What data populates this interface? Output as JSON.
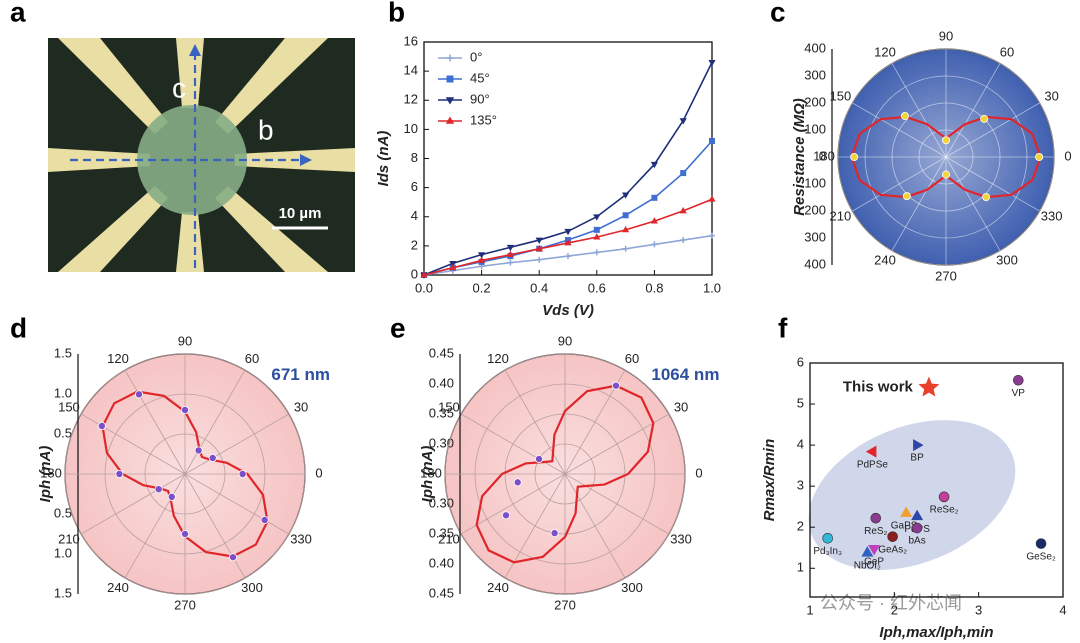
{
  "image_panel": {
    "panel_label": "a",
    "labels": [
      "c",
      "b"
    ],
    "scale_bar": "10 µm"
  },
  "chart_data": [
    {
      "type": "line",
      "panel_label": "b",
      "xlabel": "Vds (V)",
      "ylabel": "Ids (nA)",
      "x": [
        0,
        0.1,
        0.2,
        0.3,
        0.4,
        0.5,
        0.6,
        0.7,
        0.8,
        0.9,
        1.0
      ],
      "xlim": [
        0,
        1
      ],
      "xticks": [
        {
          "value": 0,
          "label": "0.0"
        },
        0.2,
        0.4,
        0.6,
        0.8,
        {
          "value": 1,
          "label": "1.0"
        }
      ],
      "ylim": [
        0,
        16
      ],
      "yticks": [
        0,
        2,
        4,
        6,
        8,
        10,
        12,
        14,
        16
      ],
      "legend": "upper left",
      "series": [
        {
          "name": "0°",
          "color": "#8fa6d6",
          "marker": "plus",
          "values": [
            0,
            0.3,
            0.6,
            0.85,
            1.05,
            1.3,
            1.55,
            1.8,
            2.1,
            2.4,
            2.7
          ]
        },
        {
          "name": "45°",
          "color": "#3f6fd0",
          "marker": "square",
          "values": [
            0,
            0.5,
            0.9,
            1.3,
            1.8,
            2.4,
            3.1,
            4.1,
            5.3,
            7.0,
            9.2
          ]
        },
        {
          "name": "90°",
          "color": "#1f2f7a",
          "marker": "triangle-down",
          "values": [
            0,
            0.8,
            1.4,
            1.9,
            2.4,
            3.0,
            4.0,
            5.5,
            7.6,
            10.6,
            14.6
          ]
        },
        {
          "name": "135°",
          "color": "#e0262b",
          "marker": "triangle-up",
          "values": [
            0,
            0.5,
            1.0,
            1.4,
            1.8,
            2.2,
            2.6,
            3.1,
            3.7,
            4.4,
            5.2
          ]
        }
      ]
    },
    {
      "type": "polar",
      "panel_label": "c",
      "ylabel": "Resistance (MΩ)",
      "background": "#4060b0",
      "rlim": [
        0,
        400
      ],
      "rticks": [
        0,
        100,
        200,
        300,
        400
      ],
      "angle_ticks": [
        0,
        30,
        60,
        90,
        120,
        150,
        180,
        210,
        240,
        270,
        300,
        330
      ],
      "series": [
        {
          "style": "line",
          "color": "#e0262b",
          "angles": [
            0,
            15,
            30,
            45,
            60,
            75,
            90,
            105,
            120,
            135,
            150,
            165,
            180,
            195,
            210,
            225,
            240,
            255,
            270,
            285,
            300,
            315,
            330,
            345
          ],
          "values": [
            350,
            331,
            280,
            210,
            140,
            89,
            70,
            89,
            140,
            210,
            280,
            331,
            350,
            331,
            280,
            210,
            140,
            89,
            70,
            89,
            140,
            210,
            280,
            331
          ]
        },
        {
          "style": "points",
          "color": "#f2d43a",
          "angles": [
            0,
            45,
            90,
            135,
            180,
            225,
            270,
            315
          ],
          "values": [
            345,
            200,
            62,
            215,
            340,
            205,
            65,
            210
          ]
        }
      ]
    },
    {
      "type": "polar",
      "panel_label": "d",
      "ylabel": "Iph (nA)",
      "background": "#f6c4c4",
      "annotation": "671 nm",
      "rlim": [
        0,
        1.5
      ],
      "rticks": [
        0.5,
        {
          "value": 1,
          "label": "1.0"
        },
        1.5
      ],
      "angle_ticks": [
        0,
        30,
        60,
        90,
        120,
        150,
        180,
        210,
        240,
        270,
        300,
        330
      ],
      "series": [
        {
          "style": "line",
          "color": "#e0262b",
          "angles": [
            0,
            15,
            30,
            45,
            60,
            75,
            90,
            105,
            120,
            135,
            150,
            165,
            180,
            195,
            210,
            225,
            240,
            255,
            270,
            285,
            300,
            315,
            330,
            345
          ],
          "values": [
            0.78,
            0.54,
            0.36,
            0.3,
            0.36,
            0.54,
            0.78,
            1.01,
            1.19,
            1.25,
            1.19,
            1.01,
            0.78,
            0.54,
            0.36,
            0.3,
            0.36,
            0.54,
            0.78,
            1.01,
            1.19,
            1.25,
            1.19,
            1.01
          ]
        },
        {
          "style": "points",
          "color": "#7a4fc9",
          "angles": [
            0,
            30,
            60,
            90,
            120,
            150,
            180,
            210,
            240,
            270,
            300,
            330
          ],
          "values": [
            0.72,
            0.4,
            0.34,
            0.8,
            1.15,
            1.2,
            0.82,
            0.38,
            0.33,
            0.75,
            1.2,
            1.15
          ]
        }
      ]
    },
    {
      "type": "polar",
      "panel_label": "e",
      "ylabel": "Iph (nA)",
      "background": "#f6c4c4",
      "annotation": "1064 nm",
      "rlim": [
        0.25,
        0.45
      ],
      "rticks": [
        {
          "value": 0.3,
          "label": "0.30"
        },
        0.35,
        {
          "value": 0.4,
          "label": "0.40"
        },
        0.45
      ],
      "angle_ticks": [
        0,
        30,
        60,
        90,
        120,
        150,
        180,
        210,
        240,
        270,
        300,
        330
      ],
      "series": [
        {
          "style": "line",
          "color": "#e0262b",
          "angles": [
            0,
            15,
            30,
            45,
            60,
            75,
            90,
            105,
            120,
            135,
            150,
            165,
            180,
            195,
            210,
            225,
            240,
            255,
            270,
            285,
            300,
            315,
            330,
            345
          ],
          "values": [
            0.355,
            0.393,
            0.42,
            0.43,
            0.42,
            0.393,
            0.355,
            0.318,
            0.29,
            0.28,
            0.29,
            0.318,
            0.355,
            0.393,
            0.42,
            0.43,
            0.42,
            0.393,
            0.355,
            0.318,
            0.29,
            0.28,
            0.29,
            0.318
          ]
        },
        {
          "style": "points",
          "color": "#7a4fc9",
          "angles": [
            60,
            150,
            190,
            215,
            260
          ],
          "values": [
            0.42,
            0.3,
            0.33,
            0.37,
            0.35
          ]
        }
      ]
    },
    {
      "type": "scatter",
      "panel_label": "f",
      "xlabel": "Iph,max/Iph,min",
      "ylabel": "Rmax/Rmin",
      "xlim": [
        1,
        4
      ],
      "xticks": [
        1,
        2,
        3,
        4
      ],
      "ylim": [
        0.3,
        6
      ],
      "yticks": [
        1,
        2,
        3,
        4,
        5,
        6
      ],
      "labels": [
        "This work",
        "VP",
        "PdPSe",
        "BP",
        "GaPS₄",
        "ReSe₂",
        "ReS₂",
        "PdPS",
        "bAs",
        "GeAs₂",
        "GeP",
        "Pd₃In₃",
        "NbOI₂",
        "GeSe₂"
      ],
      "x": [
        2.41,
        3.47,
        1.74,
        2.27,
        2.14,
        2.59,
        1.78,
        2.27,
        2.27,
        1.98,
        1.76,
        1.21,
        1.68,
        3.74
      ],
      "values": [
        5.4,
        5.58,
        3.84,
        4.0,
        2.35,
        2.74,
        2.22,
        2.27,
        1.98,
        1.77,
        1.47,
        1.73,
        1.38,
        1.6
      ],
      "colors": [
        "#e8402a",
        "#8a3a8f",
        "#e0262b",
        "#2d46a8",
        "#f0a030",
        "#c0409a",
        "#8a3a8f",
        "#2d46a8",
        "#8a3a8f",
        "#8a1f1f",
        "#c040c0",
        "#30b8d8",
        "#3060c0",
        "#1a2a6a"
      ],
      "markers": [
        "star",
        "circle",
        "triangle-left",
        "triangle-right",
        "triangle-up",
        "circle",
        "circle",
        "triangle-up",
        "circle",
        "circle",
        "triangle-down",
        "circle",
        "triangle-up",
        "circle"
      ]
    }
  ],
  "watermark": "公众号 · 红外芯闻"
}
